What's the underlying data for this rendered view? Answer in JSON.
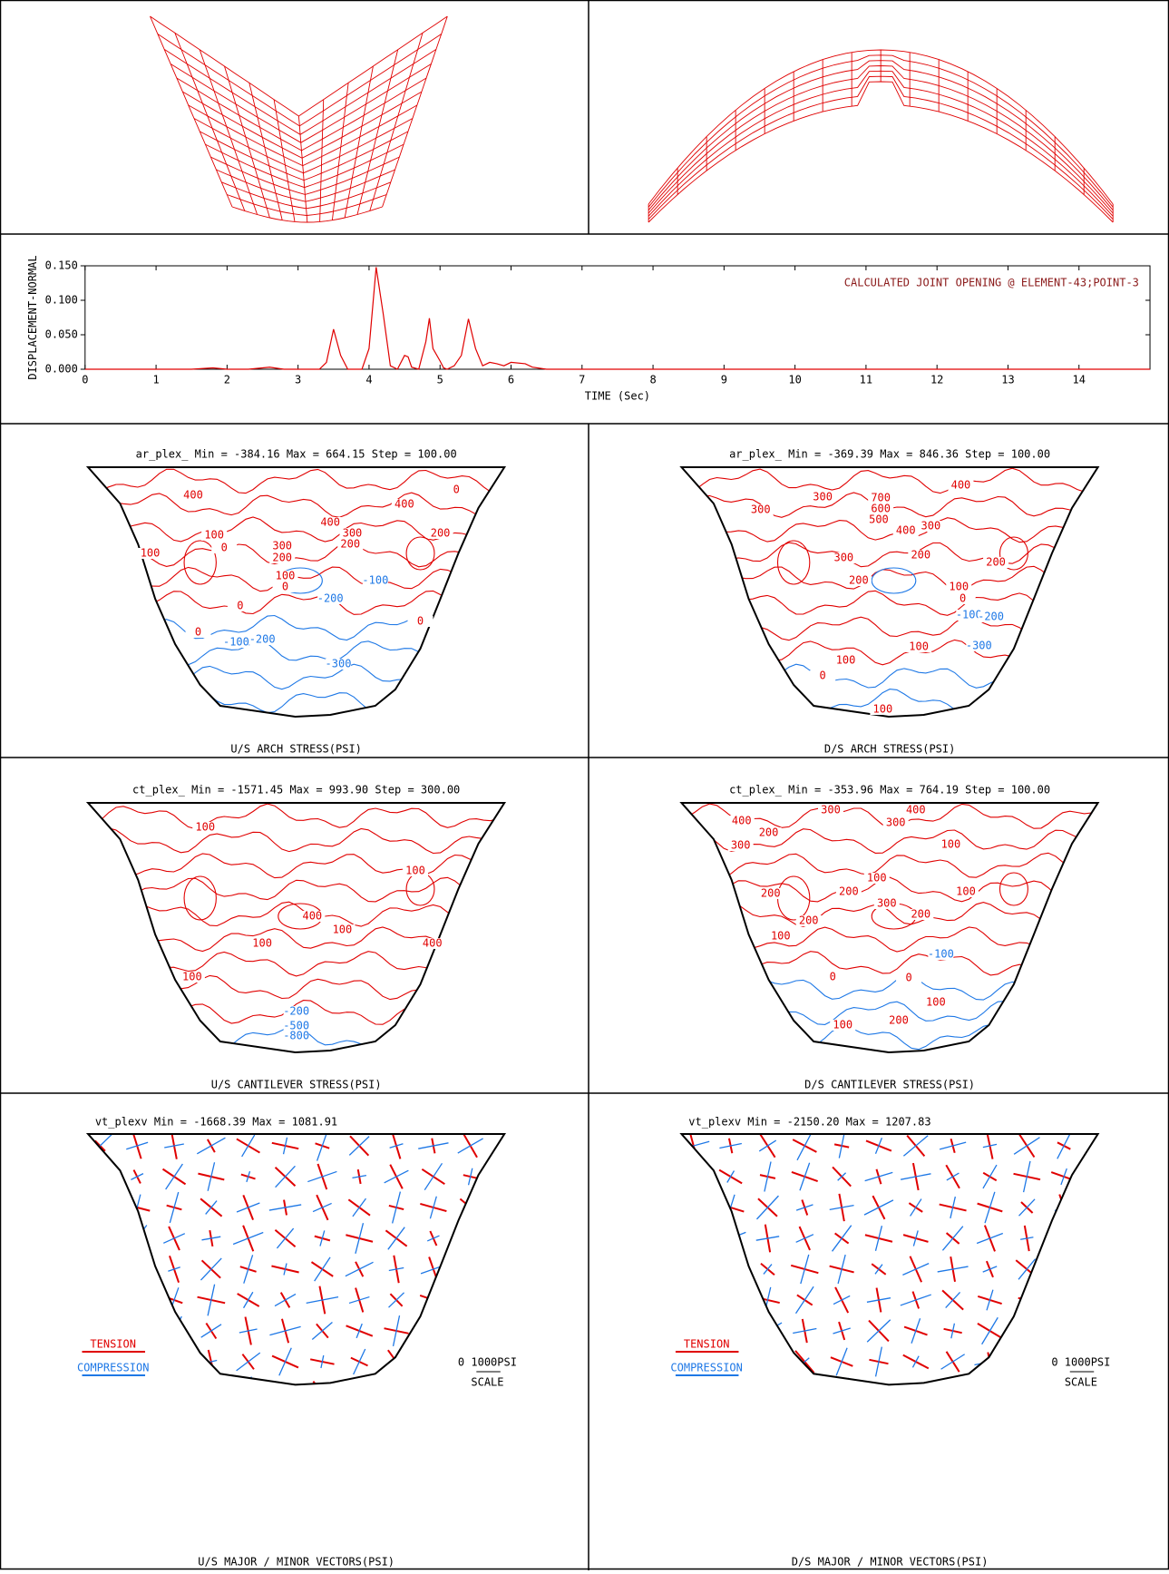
{
  "chart_data": {
    "type": "line",
    "annotation": "CALCULATED JOINT OPENING @ ELEMENT-43;POINT-3",
    "x_label": "TIME (Sec)",
    "y_label": "DISPLACEMENT-NORMAL",
    "x": [
      0,
      0.5,
      1,
      1.5,
      1.8,
      2,
      2.3,
      2.6,
      2.8,
      3,
      3.3,
      3.4,
      3.5,
      3.6,
      3.7,
      3.9,
      4.0,
      4.1,
      4.2,
      4.3,
      4.4,
      4.5,
      4.55,
      4.6,
      4.7,
      4.8,
      4.85,
      4.9,
      5.0,
      5.05,
      5.1,
      5.2,
      5.3,
      5.4,
      5.5,
      5.6,
      5.7,
      5.8,
      5.9,
      6.0,
      6.2,
      6.3,
      6.5,
      7,
      8,
      10,
      12,
      15
    ],
    "values": [
      0,
      0,
      0,
      0,
      0.002,
      0,
      0,
      0.003,
      0,
      0,
      0,
      0.01,
      0.058,
      0.02,
      0,
      0,
      0.03,
      0.148,
      0.08,
      0.005,
      0,
      0.02,
      0.018,
      0.003,
      0,
      0.04,
      0.074,
      0.03,
      0.012,
      0.002,
      0,
      0.005,
      0.02,
      0.073,
      0.03,
      0.005,
      0.01,
      0.008,
      0.005,
      0.01,
      0.008,
      0.003,
      0,
      0,
      0,
      0,
      0,
      0
    ],
    "color": "#e00000",
    "xlim": [
      0,
      15
    ],
    "xticks": [
      0,
      1,
      2,
      3,
      4,
      5,
      6,
      7,
      8,
      9,
      10,
      11,
      12,
      13,
      14
    ],
    "ylim": [
      0,
      0.15
    ],
    "yticks": [
      {
        "value": 0,
        "label": "0.000"
      },
      {
        "value": 0.05,
        "label": "0.050"
      },
      {
        "value": 0.1,
        "label": "0.100"
      },
      {
        "value": 0.15,
        "label": "0.150"
      }
    ]
  },
  "contour_panels": [
    {
      "header": "ar_plex_    Min = -384.16    Max = 664.15    Step = 100.00",
      "footer": "U/S ARCH STRESS(PSI)",
      "contour_labels": [
        "400",
        "400",
        "200",
        "0",
        "400",
        "300",
        "200",
        "100",
        "0",
        "300",
        "200",
        "100",
        "0",
        "100",
        "-100",
        "-200",
        "0",
        "0",
        "-100",
        "-200",
        "0",
        "-300"
      ]
    },
    {
      "header": "ar_plex_    Min = -369.39    Max = 846.36    Step = 100.00",
      "footer": "D/S ARCH STRESS(PSI)",
      "contour_labels": [
        "300",
        "400",
        "300",
        "700",
        "600",
        "500",
        "400",
        "300",
        "300",
        "200",
        "200",
        "200",
        "100",
        "0",
        "-100",
        "-200",
        "-300",
        "0",
        "100",
        "100",
        "100"
      ]
    },
    {
      "header": "ct_plex_    Min = -1571.45    Max = 993.90    Step = 300.00",
      "footer": "U/S CANTILEVER STRESS(PSI)",
      "contour_labels": [
        "100",
        "100",
        "400",
        "100",
        "100",
        "400",
        "100",
        "-200",
        "-500",
        "-800"
      ]
    },
    {
      "header": "ct_plex_    Min = -353.96    Max = 764.19    Step = 100.00",
      "footer": "D/S CANTILEVER STRESS(PSI)",
      "contour_labels": [
        "300",
        "400",
        "300",
        "400",
        "200",
        "300",
        "100",
        "100",
        "100",
        "200",
        "200",
        "300",
        "200",
        "200",
        "100",
        "-100",
        "0",
        "0",
        "100",
        "200",
        "100"
      ]
    }
  ],
  "vector_panels": [
    {
      "header": "vt_plexv    Min = -1668.39    Max = 1081.91",
      "footer": "U/S MAJOR / MINOR  VECTORS(PSI)",
      "legend": [
        "TENSION",
        "COMPRESSION"
      ],
      "scale_label": "0  1000PSI",
      "scale_title": "SCALE"
    },
    {
      "header": "vt_plexv    Min = -2150.20    Max = 1207.83",
      "footer": "D/S MAJOR / MINOR  VECTORS(PSI)",
      "legend": [
        "TENSION",
        "COMPRESSION"
      ],
      "scale_label": "0 1000PSI",
      "scale_title": "SCALE"
    }
  ]
}
